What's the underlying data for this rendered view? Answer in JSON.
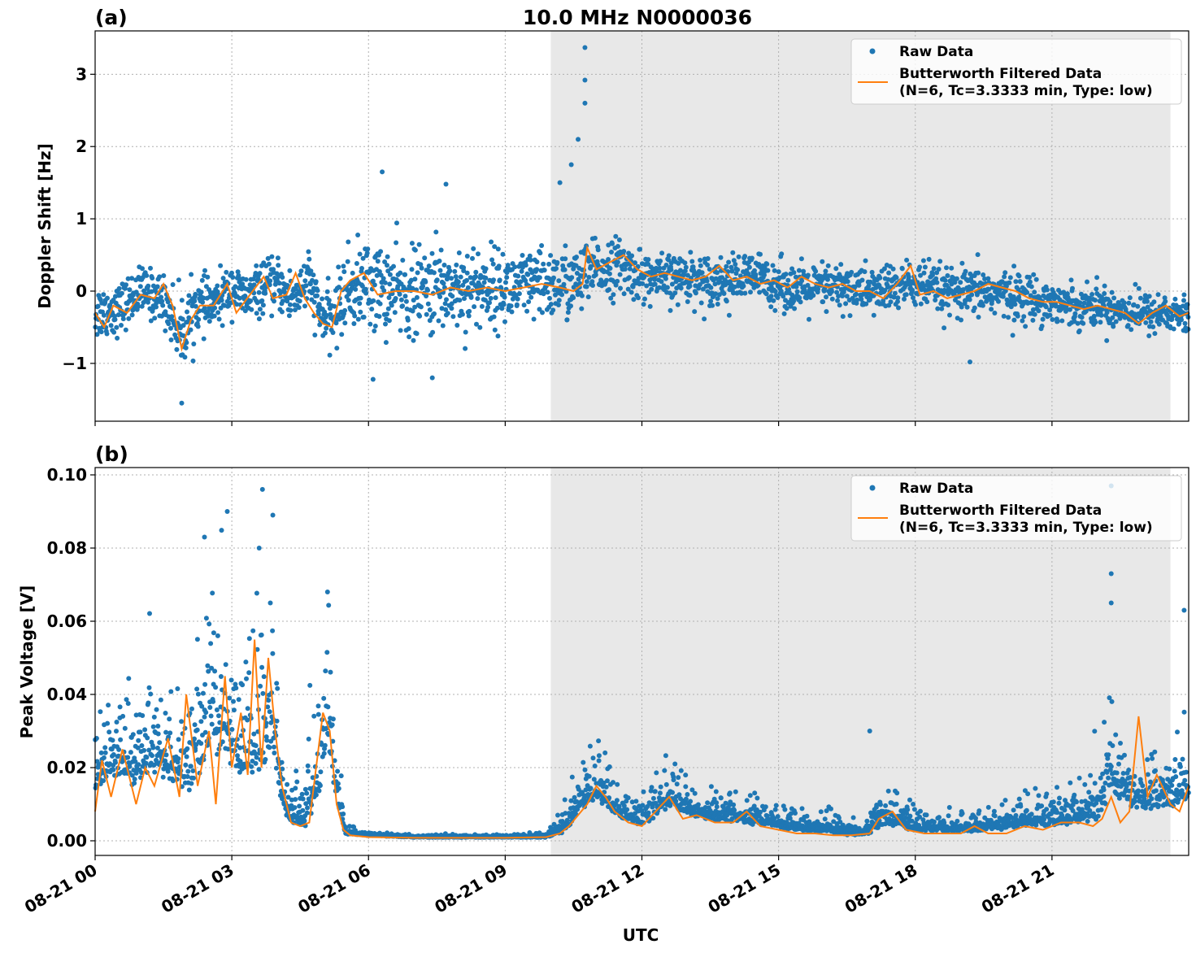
{
  "title": "10.0 MHz N0000036",
  "x_axis_label": "UTC",
  "colors": {
    "raw": "#1f77b4",
    "filtered": "#ff7f0e",
    "shade": "#e8e8e8"
  },
  "chart_data": [
    {
      "type": "scatter",
      "panel_label": "(a)",
      "title": "10.0 MHz N0000036",
      "xlabel": "",
      "ylabel": "Doppler Shift [Hz]",
      "x_unit": "hours UTC (08-21)",
      "xlim": [
        0,
        24
      ],
      "ylim": [
        -1.8,
        3.6
      ],
      "x_ticks": [
        {
          "value": 0,
          "label": "08-21 00"
        },
        {
          "value": 3,
          "label": "08-21 03"
        },
        {
          "value": 6,
          "label": "08-21 06"
        },
        {
          "value": 9,
          "label": "08-21 09"
        },
        {
          "value": 12,
          "label": "08-21 12"
        },
        {
          "value": 15,
          "label": "08-21 15"
        },
        {
          "value": 18,
          "label": "08-21 18"
        },
        {
          "value": 21,
          "label": "08-21 21"
        }
      ],
      "y_ticks": [
        {
          "value": -1,
          "label": "−1"
        },
        {
          "value": 0,
          "label": "0"
        },
        {
          "value": 1,
          "label": "1"
        },
        {
          "value": 2,
          "label": "2"
        },
        {
          "value": 3,
          "label": "3"
        }
      ],
      "shaded_region": [
        10.0,
        23.6
      ],
      "grid": true,
      "legend_position": "top-right",
      "legend": [
        "Raw Data",
        "Butterworth Filtered Data",
        "(N=6, Tc=3.3333 min, Type: low)"
      ],
      "series": [
        {
          "name": "Raw Data",
          "style": "points",
          "x": [
            0,
            0.5,
            1,
            1.5,
            1.9,
            2.2,
            2.6,
            3.0,
            3.3,
            3.7,
            4.0,
            4.3,
            4.7,
            4.95,
            5.2,
            5.5,
            6.0,
            6.5,
            7.0,
            7.5,
            8.0,
            8.5,
            9.0,
            9.5,
            10.0,
            10.5,
            11.0,
            11.5,
            12.0,
            12.5,
            13.0,
            13.5,
            14.0,
            14.5,
            15.0,
            15.5,
            16.0,
            16.5,
            17.0,
            17.5,
            18.0,
            18.5,
            19.0,
            19.5,
            20.0,
            20.5,
            21.0,
            21.5,
            22.0,
            22.5,
            23.0,
            23.5,
            24.0
          ],
          "y": [
            -0.3,
            -0.25,
            0.0,
            -0.1,
            -0.6,
            -0.2,
            -0.2,
            0.05,
            -0.1,
            0.05,
            0.1,
            -0.1,
            0.15,
            -0.35,
            -0.4,
            0.0,
            0.1,
            0.0,
            -0.05,
            0.05,
            0.05,
            0.05,
            0.05,
            0.05,
            0.1,
            0.1,
            0.3,
            0.35,
            0.2,
            0.15,
            0.2,
            0.15,
            0.15,
            0.2,
            0.1,
            0.0,
            0.05,
            0.05,
            0.0,
            0.05,
            0.1,
            0.0,
            -0.05,
            0.0,
            -0.05,
            -0.1,
            -0.15,
            -0.2,
            -0.2,
            -0.25,
            -0.3,
            -0.3,
            -0.35
          ],
          "spread": [
            0.35,
            0.3,
            0.3,
            0.3,
            0.45,
            0.35,
            0.3,
            0.3,
            0.3,
            0.3,
            0.3,
            0.35,
            0.35,
            0.3,
            0.35,
            0.5,
            0.55,
            0.55,
            0.55,
            0.55,
            0.55,
            0.5,
            0.45,
            0.45,
            0.45,
            0.45,
            0.35,
            0.35,
            0.3,
            0.3,
            0.3,
            0.3,
            0.3,
            0.3,
            0.3,
            0.3,
            0.3,
            0.3,
            0.3,
            0.3,
            0.3,
            0.3,
            0.3,
            0.3,
            0.3,
            0.3,
            0.25,
            0.25,
            0.25,
            0.25,
            0.25,
            0.25,
            0.25
          ]
        },
        {
          "name": "Butterworth Filtered Data",
          "style": "line",
          "x": [
            0,
            0.2,
            0.4,
            0.7,
            1.0,
            1.3,
            1.5,
            1.7,
            1.9,
            2.1,
            2.3,
            2.6,
            2.9,
            3.1,
            3.4,
            3.7,
            3.9,
            4.2,
            4.4,
            4.6,
            4.8,
            5.0,
            5.2,
            5.4,
            5.6,
            5.9,
            6.2,
            6.6,
            7.0,
            7.4,
            7.8,
            8.2,
            8.6,
            9.0,
            9.4,
            9.8,
            10.2,
            10.5,
            10.7,
            10.8,
            11.0,
            11.3,
            11.6,
            11.9,
            12.2,
            12.5,
            12.8,
            13.1,
            13.4,
            13.7,
            14.0,
            14.3,
            14.6,
            14.9,
            15.2,
            15.5,
            15.8,
            16.1,
            16.4,
            16.7,
            17.0,
            17.3,
            17.6,
            17.9,
            18.1,
            18.4,
            18.7,
            19.0,
            19.3,
            19.6,
            19.9,
            20.2,
            20.5,
            20.8,
            21.1,
            21.4,
            21.7,
            22.0,
            22.3,
            22.6,
            22.9,
            23.2,
            23.5,
            23.8,
            24.0
          ],
          "y": [
            -0.3,
            -0.5,
            -0.2,
            -0.3,
            -0.05,
            -0.1,
            0.1,
            -0.2,
            -0.8,
            -0.4,
            -0.2,
            -0.2,
            0.1,
            -0.3,
            -0.05,
            0.2,
            -0.1,
            -0.05,
            0.25,
            -0.1,
            -0.3,
            -0.45,
            -0.5,
            0.0,
            0.15,
            0.25,
            -0.05,
            0.0,
            0.0,
            -0.05,
            0.05,
            0.0,
            0.05,
            0.0,
            0.05,
            0.1,
            0.05,
            0.0,
            0.1,
            0.6,
            0.3,
            0.4,
            0.5,
            0.3,
            0.2,
            0.25,
            0.2,
            0.15,
            0.2,
            0.35,
            0.15,
            0.2,
            0.1,
            0.15,
            0.05,
            0.2,
            0.1,
            0.05,
            0.1,
            0.0,
            0.0,
            -0.1,
            0.1,
            0.35,
            -0.05,
            0.0,
            -0.1,
            -0.05,
            0.0,
            0.1,
            0.05,
            0.0,
            -0.1,
            -0.15,
            -0.15,
            -0.2,
            -0.25,
            -0.2,
            -0.25,
            -0.3,
            -0.45,
            -0.3,
            -0.2,
            -0.35,
            -0.3
          ]
        }
      ],
      "outliers": [
        {
          "x": 10.75,
          "y": 3.37
        },
        {
          "x": 10.75,
          "y": 2.92
        },
        {
          "x": 10.75,
          "y": 2.6
        },
        {
          "x": 10.6,
          "y": 2.1
        },
        {
          "x": 10.45,
          "y": 1.75
        },
        {
          "x": 10.2,
          "y": 1.5
        },
        {
          "x": 6.3,
          "y": 1.65
        },
        {
          "x": 7.7,
          "y": 1.48
        },
        {
          "x": 1.9,
          "y": -1.55
        },
        {
          "x": 6.1,
          "y": -1.22
        },
        {
          "x": 7.4,
          "y": -1.2
        },
        {
          "x": 19.2,
          "y": -0.98
        }
      ]
    },
    {
      "type": "scatter",
      "panel_label": "(b)",
      "title": "",
      "xlabel": "UTC",
      "ylabel": "Peak Voltage [V]",
      "x_unit": "hours UTC (08-21)",
      "xlim": [
        0,
        24
      ],
      "ylim": [
        -0.004,
        0.102
      ],
      "x_ticks": [
        {
          "value": 0,
          "label": "08-21 00"
        },
        {
          "value": 3,
          "label": "08-21 03"
        },
        {
          "value": 6,
          "label": "08-21 06"
        },
        {
          "value": 9,
          "label": "08-21 09"
        },
        {
          "value": 12,
          "label": "08-21 12"
        },
        {
          "value": 15,
          "label": "08-21 15"
        },
        {
          "value": 18,
          "label": "08-21 18"
        },
        {
          "value": 21,
          "label": "08-21 21"
        }
      ],
      "y_ticks": [
        {
          "value": 0.0,
          "label": "0.00"
        },
        {
          "value": 0.02,
          "label": "0.02"
        },
        {
          "value": 0.04,
          "label": "0.04"
        },
        {
          "value": 0.06,
          "label": "0.06"
        },
        {
          "value": 0.08,
          "label": "0.08"
        },
        {
          "value": 0.1,
          "label": "0.10"
        }
      ],
      "shaded_region": [
        10.0,
        23.6
      ],
      "grid": true,
      "legend_position": "top-right",
      "legend": [
        "Raw Data",
        "Butterworth Filtered Data",
        "(N=6, Tc=3.3333 min, Type: low)"
      ],
      "series": [
        {
          "name": "Raw Data",
          "style": "points",
          "x": [
            0,
            0.4,
            0.8,
            1.2,
            1.6,
            2.0,
            2.4,
            2.8,
            3.1,
            3.4,
            3.7,
            3.9,
            4.1,
            4.3,
            4.6,
            4.9,
            5.1,
            5.3,
            5.5,
            6.0,
            7.0,
            8.0,
            9.0,
            9.9,
            10.3,
            10.7,
            11.0,
            11.3,
            11.6,
            12.0,
            12.4,
            12.7,
            13.0,
            13.5,
            14.0,
            14.5,
            15.0,
            15.5,
            16.0,
            16.5,
            17.0,
            17.3,
            17.6,
            18.0,
            18.5,
            19.0,
            19.5,
            20.0,
            20.5,
            21.0,
            21.5,
            22.0,
            22.3,
            22.6,
            23.0,
            23.5,
            24.0
          ],
          "y": [
            0.015,
            0.02,
            0.018,
            0.02,
            0.02,
            0.015,
            0.025,
            0.03,
            0.02,
            0.02,
            0.025,
            0.03,
            0.01,
            0.006,
            0.005,
            0.015,
            0.03,
            0.012,
            0.002,
            0.0015,
            0.001,
            0.001,
            0.001,
            0.001,
            0.003,
            0.01,
            0.012,
            0.01,
            0.006,
            0.005,
            0.008,
            0.01,
            0.008,
            0.006,
            0.006,
            0.005,
            0.004,
            0.003,
            0.003,
            0.002,
            0.002,
            0.005,
            0.005,
            0.003,
            0.003,
            0.003,
            0.003,
            0.004,
            0.005,
            0.005,
            0.006,
            0.007,
            0.015,
            0.012,
            0.01,
            0.01,
            0.012
          ],
          "spread": [
            0.012,
            0.015,
            0.02,
            0.02,
            0.02,
            0.03,
            0.035,
            0.04,
            0.03,
            0.035,
            0.04,
            0.035,
            0.01,
            0.006,
            0.01,
            0.025,
            0.03,
            0.01,
            0.002,
            0.0008,
            0.0006,
            0.0006,
            0.0006,
            0.0008,
            0.005,
            0.012,
            0.012,
            0.01,
            0.006,
            0.006,
            0.01,
            0.01,
            0.008,
            0.007,
            0.007,
            0.006,
            0.005,
            0.004,
            0.004,
            0.003,
            0.004,
            0.01,
            0.008,
            0.004,
            0.004,
            0.005,
            0.004,
            0.006,
            0.007,
            0.008,
            0.01,
            0.012,
            0.02,
            0.015,
            0.012,
            0.012,
            0.015
          ]
        },
        {
          "name": "Butterworth Filtered Data",
          "style": "line",
          "x": [
            0,
            0.15,
            0.35,
            0.6,
            0.9,
            1.1,
            1.3,
            1.6,
            1.85,
            2.0,
            2.25,
            2.5,
            2.65,
            2.85,
            3.0,
            3.2,
            3.35,
            3.5,
            3.65,
            3.8,
            3.95,
            4.1,
            4.3,
            4.5,
            4.7,
            4.85,
            5.0,
            5.15,
            5.3,
            5.45,
            5.6,
            6.0,
            7.0,
            8.0,
            9.0,
            9.9,
            10.2,
            10.4,
            10.6,
            10.8,
            11.0,
            11.2,
            11.4,
            11.7,
            12.0,
            12.3,
            12.6,
            12.9,
            13.2,
            13.6,
            14.0,
            14.3,
            14.6,
            15.0,
            15.4,
            15.8,
            16.2,
            16.6,
            17.0,
            17.2,
            17.5,
            17.8,
            18.2,
            18.6,
            19.0,
            19.3,
            19.6,
            20.0,
            20.4,
            20.8,
            21.2,
            21.6,
            21.9,
            22.1,
            22.3,
            22.5,
            22.7,
            22.9,
            23.1,
            23.3,
            23.6,
            23.8,
            24.0
          ],
          "y": [
            0.008,
            0.022,
            0.012,
            0.025,
            0.01,
            0.02,
            0.015,
            0.028,
            0.012,
            0.04,
            0.015,
            0.03,
            0.01,
            0.045,
            0.02,
            0.035,
            0.018,
            0.055,
            0.02,
            0.05,
            0.03,
            0.015,
            0.005,
            0.004,
            0.005,
            0.02,
            0.035,
            0.03,
            0.01,
            0.003,
            0.0015,
            0.001,
            0.0008,
            0.0008,
            0.0008,
            0.001,
            0.002,
            0.004,
            0.007,
            0.01,
            0.015,
            0.012,
            0.008,
            0.005,
            0.004,
            0.008,
            0.012,
            0.006,
            0.007,
            0.005,
            0.005,
            0.008,
            0.004,
            0.003,
            0.002,
            0.002,
            0.0015,
            0.0015,
            0.002,
            0.006,
            0.008,
            0.003,
            0.002,
            0.002,
            0.002,
            0.004,
            0.002,
            0.002,
            0.004,
            0.003,
            0.005,
            0.005,
            0.004,
            0.006,
            0.012,
            0.005,
            0.008,
            0.034,
            0.012,
            0.018,
            0.01,
            0.008,
            0.015
          ]
        }
      ],
      "outliers": [
        {
          "x": 2.9,
          "y": 0.09
        },
        {
          "x": 3.9,
          "y": 0.089
        },
        {
          "x": 3.6,
          "y": 0.08
        },
        {
          "x": 2.4,
          "y": 0.083
        },
        {
          "x": 22.3,
          "y": 0.097
        },
        {
          "x": 22.3,
          "y": 0.073
        },
        {
          "x": 22.3,
          "y": 0.065
        },
        {
          "x": 23.9,
          "y": 0.063
        },
        {
          "x": 17.0,
          "y": 0.03
        },
        {
          "x": 5.1,
          "y": 0.068
        }
      ]
    }
  ]
}
